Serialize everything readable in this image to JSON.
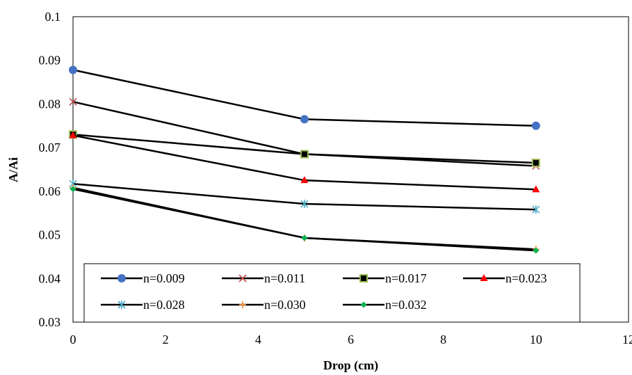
{
  "chart_data": {
    "type": "line",
    "title": "",
    "xlabel": "Drop (cm)",
    "ylabel": "A/Ai",
    "xlim": [
      0,
      12
    ],
    "ylim": [
      0.03,
      0.1
    ],
    "x_ticks": [
      "0",
      "2",
      "4",
      "6",
      "8",
      "10",
      "12"
    ],
    "y_ticks": [
      "0.03",
      "0.04",
      "0.05",
      "0.06",
      "0.07",
      "0.08",
      "0.09",
      "0.1"
    ],
    "x_tick_values": [
      0,
      2,
      4,
      6,
      8,
      10,
      12
    ],
    "y_tick_values": [
      0.03,
      0.04,
      0.05,
      0.06,
      0.07,
      0.08,
      0.09,
      0.1
    ],
    "grid": false,
    "legend_position": "bottom, inside plot",
    "series": [
      {
        "name": "n=0.009",
        "marker": "circle",
        "color": "#4472C4",
        "x": [
          0,
          5,
          10
        ],
        "y": [
          0.0878,
          0.0765,
          0.075
        ]
      },
      {
        "name": "n=0.011",
        "marker": "x",
        "color": "#C0504D",
        "x": [
          0,
          5,
          10
        ],
        "y": [
          0.0805,
          0.0685,
          0.0658
        ]
      },
      {
        "name": "n=0.017",
        "marker": "square",
        "color": "#9BBB59",
        "x": [
          0,
          5,
          10
        ],
        "y": [
          0.073,
          0.0685,
          0.0665
        ]
      },
      {
        "name": "n=0.023",
        "marker": "triangle",
        "color": "#FF0000",
        "x": [
          0,
          5,
          10
        ],
        "y": [
          0.0728,
          0.0625,
          0.0604
        ]
      },
      {
        "name": "n=0.028",
        "marker": "star",
        "color": "#4BACC6",
        "x": [
          0,
          5,
          10
        ],
        "y": [
          0.0617,
          0.0571,
          0.0558
        ]
      },
      {
        "name": "n=0.030",
        "marker": "plus",
        "color": "#F79646",
        "x": [
          0,
          5,
          10
        ],
        "y": [
          0.0608,
          0.0493,
          0.0467
        ]
      },
      {
        "name": "n=0.032",
        "marker": "diamond",
        "color": "#00B050",
        "x": [
          0,
          5,
          10
        ],
        "y": [
          0.0605,
          0.0493,
          0.0464
        ]
      }
    ]
  }
}
